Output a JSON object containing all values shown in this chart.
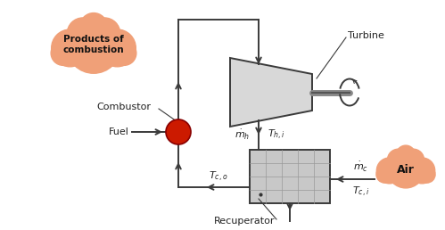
{
  "background_color": "#ffffff",
  "fig_width": 4.99,
  "fig_height": 2.58,
  "dpi": 100,
  "combustion_cloud_text": "Products of\ncombustion",
  "air_cloud_text": "Air",
  "cloud_color_r": 240,
  "cloud_color_g": 160,
  "cloud_color_b": 120,
  "turbine_label": "Turbine",
  "combustor_label": "Combustor",
  "fuel_label": "Fuel",
  "recuperator_label": "Recuperator",
  "line_color": "#3a3a3a",
  "red_circle_color": "#cc1a00",
  "grid_color": "#999999",
  "turbine_face": "#d8d8d8",
  "recup_face": "#c8c8c8",
  "shaft_color": "#888888"
}
